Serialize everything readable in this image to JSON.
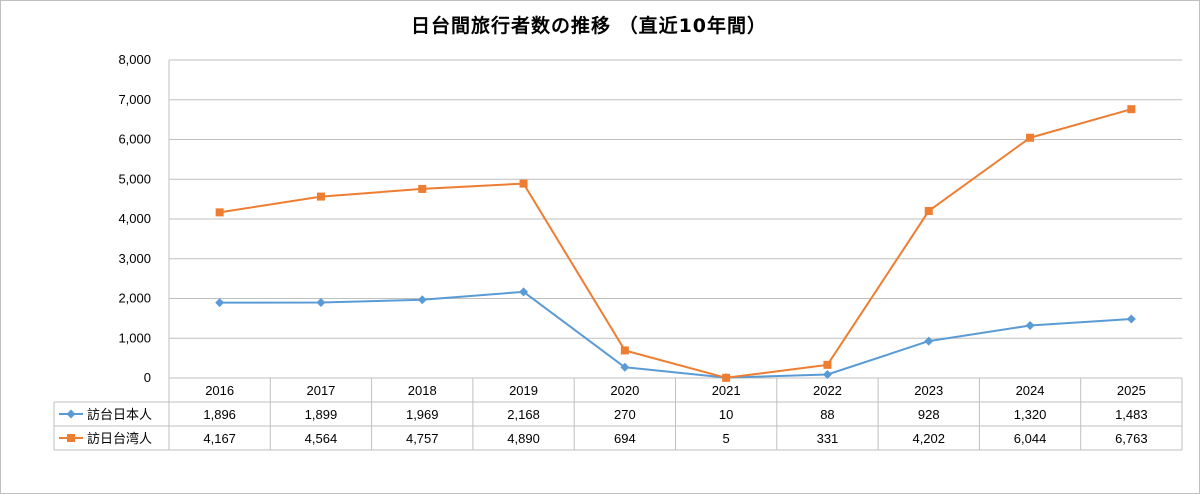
{
  "chart_data": {
    "type": "line",
    "title": "日台間旅行者数の推移 （直近10年間）",
    "categories": [
      "2016",
      "2017",
      "2018",
      "2019",
      "2020",
      "2021",
      "2022",
      "2023",
      "2024",
      "2025"
    ],
    "ylim": [
      0,
      8000
    ],
    "yticks": [
      "0",
      "1,000",
      "2,000",
      "3,000",
      "4,000",
      "5,000",
      "6,000",
      "7,000",
      "8,000"
    ],
    "grid": true,
    "legend": "data-table",
    "series": [
      {
        "name": "訪台日本人",
        "color": "#5b9bd5",
        "marker": "diamond",
        "values": [
          1896,
          1899,
          1969,
          2168,
          270,
          10,
          88,
          928,
          1320,
          1483
        ],
        "labels": [
          "1,896",
          "1,899",
          "1,969",
          "2,168",
          "270",
          "10",
          "88",
          "928",
          "1,320",
          "1,483"
        ]
      },
      {
        "name": "訪日台湾人",
        "color": "#ed7d31",
        "marker": "square",
        "values": [
          4167,
          4564,
          4757,
          4890,
          694,
          5,
          331,
          4202,
          6044,
          6763
        ],
        "labels": [
          "4,167",
          "4,564",
          "4,757",
          "4,890",
          "694",
          "5",
          "331",
          "4,202",
          "6,044",
          "6,763"
        ]
      }
    ]
  }
}
